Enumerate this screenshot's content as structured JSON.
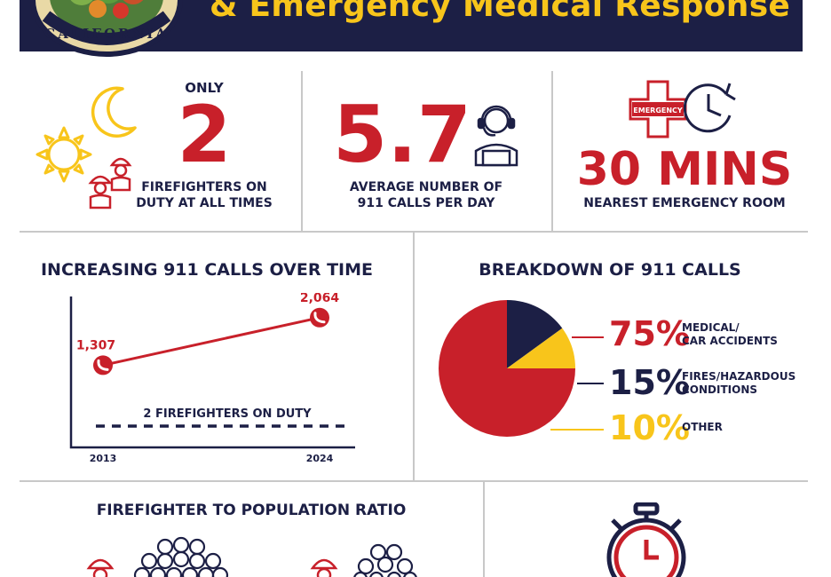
{
  "header": {
    "title": "& Emergency Medical Response",
    "seal_text": "CALIFORNIA"
  },
  "stats": {
    "firefighters": {
      "prefix": "ONLY",
      "value": "2",
      "caption_line1": "FIREFIGHTERS ON",
      "caption_line2": "DUTY AT ALL TIMES"
    },
    "calls": {
      "value": "5.7",
      "caption_line1": "AVERAGE NUMBER OF",
      "caption_line2": "911 CALLS PER DAY"
    },
    "er": {
      "badge": "EMERGENCY",
      "value": "30 MINS",
      "caption": "NEAREST EMERGENCY ROOM"
    }
  },
  "line_section": {
    "title": "INCREASING 911 CALLS OVER TIME"
  },
  "pie_section": {
    "title": "BREAKDOWN OF 911 CALLS"
  },
  "ratio_section": {
    "title": "FIREFIGHTER TO POPULATION RATIO"
  },
  "colors": {
    "navy": "#1c1f45",
    "red": "#c8202a",
    "yellow": "#f8c51b",
    "divider": "#c8c8c8"
  },
  "chart_data": [
    {
      "type": "line",
      "title": "INCREASING 911 CALLS OVER TIME",
      "x": [
        "2013",
        "2024"
      ],
      "series": [
        {
          "name": "",
          "values": [
            1307,
            2064
          ],
          "labels": [
            "1,307",
            "2,064"
          ]
        }
      ],
      "reference_line": {
        "label": "2 FIREFIGHTERS ON DUTY",
        "style": "dashed"
      },
      "ylim": [
        0,
        2400
      ]
    },
    {
      "type": "pie",
      "title": "BREAKDOWN OF 911 CALLS",
      "slices": [
        {
          "pct_label": "75%",
          "value": 75,
          "label_line1": "MEDICAL/",
          "label_line2": "CAR ACCIDENTS",
          "color": "#c8202a"
        },
        {
          "pct_label": "15%",
          "value": 15,
          "label_line1": "FIRES/HAZARDOUS",
          "label_line2": "CONDITIONS",
          "color": "#1c1f45"
        },
        {
          "pct_label": "10%",
          "value": 10,
          "label_line1": "OTHER",
          "label_line2": "",
          "color": "#f8c51b"
        }
      ]
    }
  ]
}
